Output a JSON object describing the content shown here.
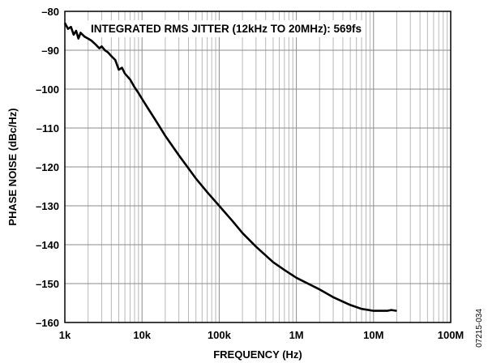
{
  "chart_data": {
    "type": "line",
    "title": "",
    "xlabel": "FREQUENCY (Hz)",
    "ylabel": "PHASE NOISE (dBc/Hz)",
    "x_scale": "log",
    "xlim": [
      1000,
      100000000
    ],
    "ylim": [
      -160,
      -80
    ],
    "x_ticks": [
      1000,
      10000,
      100000,
      1000000,
      10000000,
      100000000
    ],
    "x_tick_labels": [
      "1k",
      "10k",
      "100k",
      "1M",
      "10M",
      "100M"
    ],
    "y_ticks": [
      -80,
      -90,
      -100,
      -110,
      -120,
      -130,
      -140,
      -150,
      -160
    ],
    "y_tick_labels": [
      "–80",
      "–90",
      "–100",
      "–110",
      "–120",
      "–130",
      "–140",
      "–150",
      "–160"
    ],
    "grid": true,
    "annotation": "INTEGRATED RMS JITTER (12kHz TO 20MHz): 569fs",
    "series": [
      {
        "color": "#000000",
        "x": [
          1000,
          1100,
          1200,
          1300,
          1400,
          1500,
          1600,
          1800,
          2000,
          2200,
          2500,
          2800,
          3000,
          3300,
          3600,
          4000,
          4500,
          5000,
          5500,
          6000,
          7000,
          8000,
          9000,
          10000,
          12000,
          15000,
          20000,
          30000,
          50000,
          70000,
          100000,
          150000,
          200000,
          300000,
          500000,
          700000,
          1000000,
          2000000,
          3000000,
          5000000,
          7000000,
          10000000,
          15000000,
          17000000,
          20000000
        ],
        "y": [
          -83,
          -84.5,
          -84,
          -86,
          -85,
          -87,
          -85.5,
          -86.5,
          -87,
          -87.5,
          -88.5,
          -89.5,
          -89,
          -90,
          -90.5,
          -91.5,
          -92.5,
          -95,
          -94.5,
          -96,
          -97.5,
          -99.5,
          -101,
          -102.5,
          -105,
          -108,
          -112,
          -117,
          -123,
          -126.5,
          -130,
          -134,
          -137,
          -140.5,
          -144.5,
          -146.5,
          -148.5,
          -151.5,
          -153.5,
          -155.5,
          -156.5,
          -157,
          -157,
          -156.8,
          -157
        ]
      }
    ]
  },
  "figure_id": "07215-034"
}
